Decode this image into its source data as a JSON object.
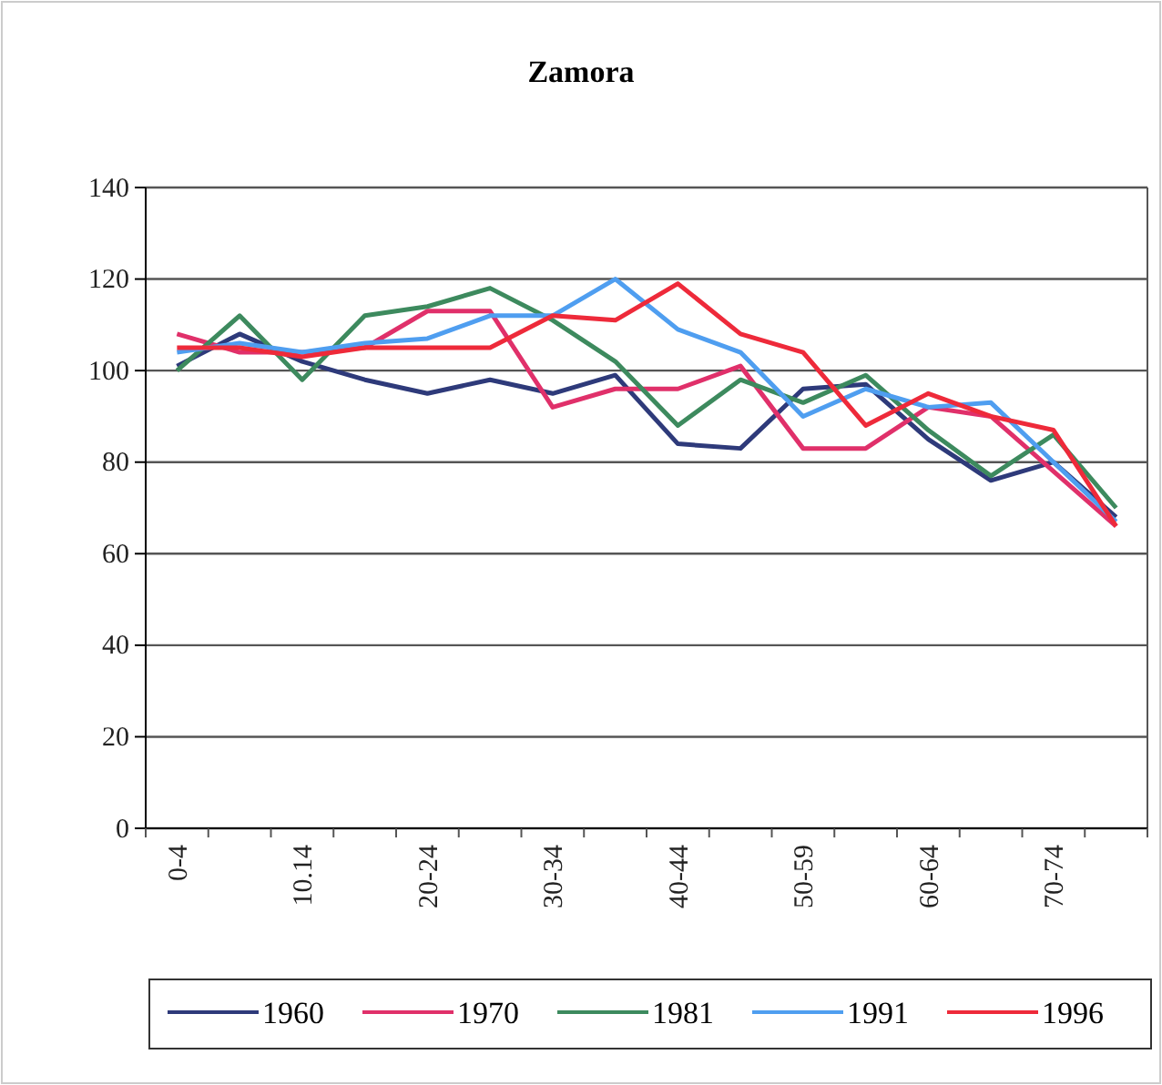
{
  "chart_data": {
    "type": "line",
    "title": "Zamora",
    "categories": [
      "0-4",
      null,
      "10.14",
      null,
      "20-24",
      null,
      "30-34",
      null,
      "40-44",
      null,
      "50-59",
      null,
      "60-64",
      null,
      "70-74",
      null
    ],
    "series": [
      {
        "name": "1960",
        "color": "#2e3a7a",
        "values": [
          101,
          108,
          102,
          98,
          95,
          98,
          95,
          99,
          84,
          83,
          96,
          97,
          85,
          76,
          80,
          68
        ]
      },
      {
        "name": "1970",
        "color": "#e0306a",
        "values": [
          108,
          104,
          104,
          105,
          113,
          113,
          92,
          96,
          96,
          101,
          83,
          83,
          92,
          90,
          78,
          66
        ]
      },
      {
        "name": "1981",
        "color": "#3d8a5e",
        "values": [
          100,
          112,
          98,
          112,
          114,
          118,
          111,
          102,
          88,
          98,
          93,
          99,
          87,
          77,
          86,
          70
        ]
      },
      {
        "name": "1991",
        "color": "#4f9ef0",
        "values": [
          104,
          106,
          104,
          106,
          107,
          112,
          112,
          120,
          109,
          104,
          90,
          96,
          92,
          93,
          80,
          67
        ]
      },
      {
        "name": "1996",
        "color": "#ee2a3a",
        "values": [
          105,
          105,
          103,
          105,
          105,
          105,
          112,
          111,
          119,
          108,
          104,
          88,
          95,
          90,
          87,
          66
        ]
      }
    ],
    "ylim": [
      0,
      140
    ],
    "yticks": [
      0,
      20,
      40,
      60,
      80,
      100,
      120,
      140
    ],
    "grid": "y",
    "legend": "bottom",
    "marker": "none",
    "line_style": "solid"
  }
}
